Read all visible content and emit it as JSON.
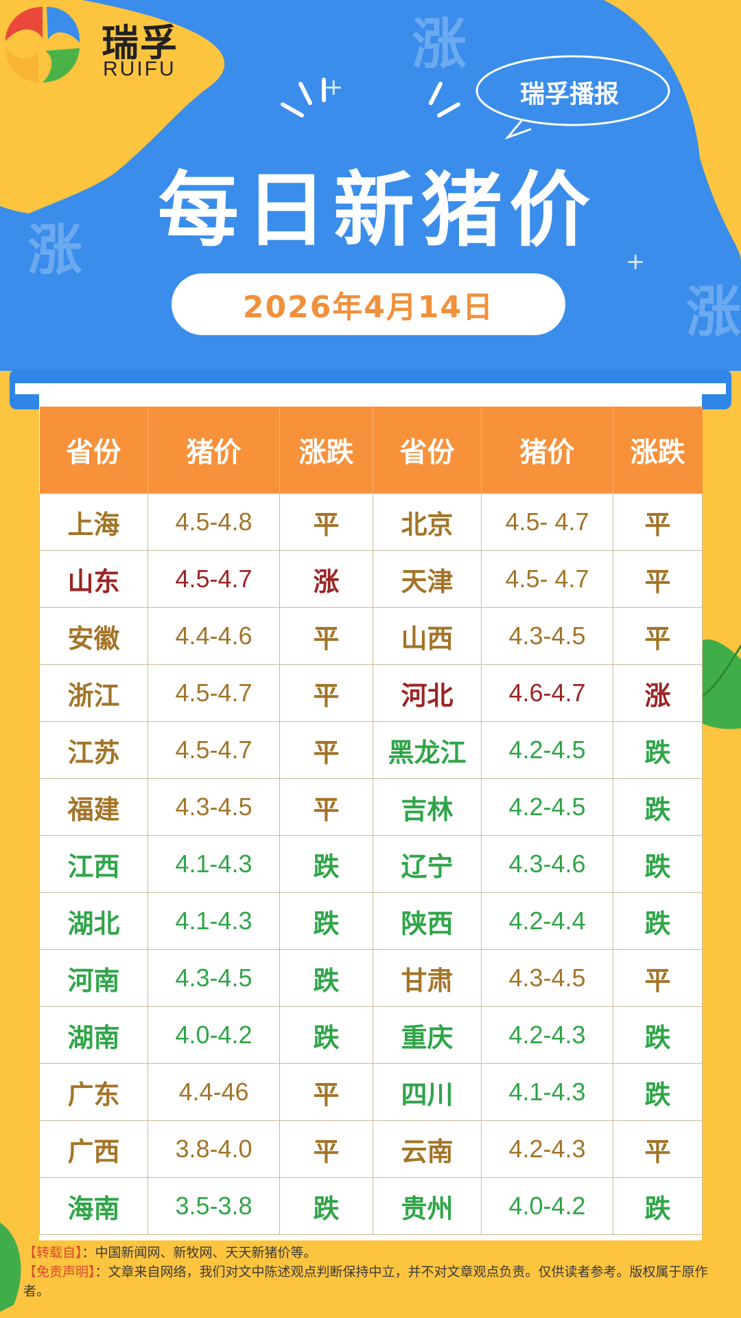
{
  "brand": {
    "name_cn": "瑞孚",
    "name_en": "RUIFU"
  },
  "badge": {
    "label": "瑞孚播报"
  },
  "title": "每日新猪价",
  "date": "2026年4月14日",
  "watermark_char": "涨",
  "colors": {
    "flat": "#A37428",
    "up": "#9C2424",
    "down": "#2FA548",
    "header_bg": "#F7913A",
    "banner_blue": "#3A8DEB"
  },
  "table": {
    "headers": [
      "省份",
      "猪价",
      "涨跌",
      "省份",
      "猪价",
      "涨跌"
    ],
    "rows": [
      {
        "l": {
          "province": "上海",
          "price": "4.5-4.8",
          "change": "平",
          "trend": "flat"
        },
        "r": {
          "province": "北京",
          "price": "4.5- 4.7",
          "change": "平",
          "trend": "flat"
        }
      },
      {
        "l": {
          "province": "山东",
          "price": "4.5-4.7",
          "change": "涨",
          "trend": "up"
        },
        "r": {
          "province": "天津",
          "price": "4.5- 4.7",
          "change": "平",
          "trend": "flat"
        }
      },
      {
        "l": {
          "province": "安徽",
          "price": "4.4-4.6",
          "change": "平",
          "trend": "flat"
        },
        "r": {
          "province": "山西",
          "price": "4.3-4.5",
          "change": "平",
          "trend": "flat"
        }
      },
      {
        "l": {
          "province": "浙江",
          "price": "4.5-4.7",
          "change": "平",
          "trend": "flat"
        },
        "r": {
          "province": "河北",
          "price": "4.6-4.7",
          "change": "涨",
          "trend": "up"
        }
      },
      {
        "l": {
          "province": "江苏",
          "price": "4.5-4.7",
          "change": "平",
          "trend": "flat"
        },
        "r": {
          "province": "黑龙江",
          "price": "4.2-4.5",
          "change": "跌",
          "trend": "down"
        }
      },
      {
        "l": {
          "province": "福建",
          "price": "4.3-4.5",
          "change": "平",
          "trend": "flat"
        },
        "r": {
          "province": "吉林",
          "price": "4.2-4.5",
          "change": "跌",
          "trend": "down"
        }
      },
      {
        "l": {
          "province": "江西",
          "price": "4.1-4.3",
          "change": "跌",
          "trend": "down"
        },
        "r": {
          "province": "辽宁",
          "price": "4.3-4.6",
          "change": "跌",
          "trend": "down"
        }
      },
      {
        "l": {
          "province": "湖北",
          "price": "4.1-4.3",
          "change": "跌",
          "trend": "down"
        },
        "r": {
          "province": "陕西",
          "price": "4.2-4.4",
          "change": "跌",
          "trend": "down"
        }
      },
      {
        "l": {
          "province": "河南",
          "price": "4.3-4.5",
          "change": "跌",
          "trend": "down"
        },
        "r": {
          "province": "甘肃",
          "price": "4.3-4.5",
          "change": "平",
          "trend": "flat"
        }
      },
      {
        "l": {
          "province": "湖南",
          "price": "4.0-4.2",
          "change": "跌",
          "trend": "down"
        },
        "r": {
          "province": "重庆",
          "price": "4.2-4.3",
          "change": "跌",
          "trend": "down"
        }
      },
      {
        "l": {
          "province": "广东",
          "price": "4.4-46",
          "change": "平",
          "trend": "flat"
        },
        "r": {
          "province": "四川",
          "price": "4.1-4.3",
          "change": "跌",
          "trend": "down"
        }
      },
      {
        "l": {
          "province": "广西",
          "price": "3.8-4.0",
          "change": "平",
          "trend": "flat"
        },
        "r": {
          "province": "云南",
          "price": "4.2-4.3",
          "change": "平",
          "trend": "flat"
        }
      },
      {
        "l": {
          "province": "海南",
          "price": "3.5-3.8",
          "change": "跌",
          "trend": "down"
        },
        "r": {
          "province": "贵州",
          "price": "4.0-4.2",
          "change": "跌",
          "trend": "down"
        }
      }
    ]
  },
  "footer": {
    "source_tag": "【转载自】",
    "source_text": "：中国新闻网、新牧网、天天新猪价等。",
    "disclaimer_tag": "【免责声明】",
    "disclaimer_text": "：文章来自网络，我们对文中陈述观点判断保持中立，并不对文章观点负责。仅供读者参考。版权属于原作者。"
  }
}
